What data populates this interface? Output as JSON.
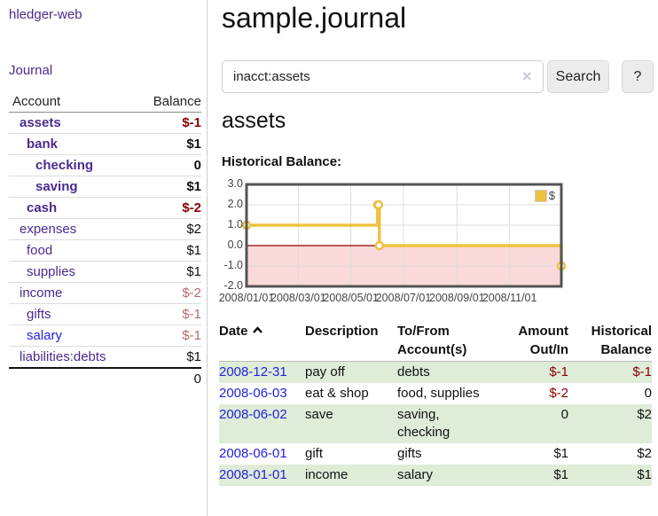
{
  "colors": {
    "link_purple": "#4a2b8f",
    "link_blue": "#2323dd",
    "negative_strong": "#8b0000",
    "negative_muted": "#b86a6a",
    "row_green": "#deecd8",
    "chart_line": "#edc240",
    "chart_negative_region": "#f9d9d9",
    "chart_zero_line": "#8b0000",
    "button_bg": "#ececec"
  },
  "sidebar": {
    "brand": "hledger-web",
    "nav_journal": "Journal",
    "header": {
      "account": "Account",
      "balance": "Balance"
    },
    "rows": [
      {
        "label": "assets",
        "balance": "$-1",
        "indent": 1,
        "bold": true,
        "link": "purple",
        "balance_color": "red-strong"
      },
      {
        "label": "bank",
        "balance": "$1",
        "indent": 2,
        "bold": true,
        "link": "purple",
        "balance_color": "black"
      },
      {
        "label": "checking",
        "balance": "0",
        "indent": 3,
        "bold": true,
        "link": "purple",
        "balance_color": "black"
      },
      {
        "label": "saving",
        "balance": "$1",
        "indent": 3,
        "bold": true,
        "link": "purple",
        "balance_color": "black"
      },
      {
        "label": "cash",
        "balance": "$-2",
        "indent": 2,
        "bold": true,
        "link": "purple",
        "balance_color": "red-strong"
      },
      {
        "label": "expenses",
        "balance": "$2",
        "indent": 1,
        "bold": false,
        "link": "purple",
        "balance_color": "black"
      },
      {
        "label": "food",
        "balance": "$1",
        "indent": 2,
        "bold": false,
        "link": "purple",
        "balance_color": "black"
      },
      {
        "label": "supplies",
        "balance": "$1",
        "indent": 2,
        "bold": false,
        "link": "purple",
        "balance_color": "black"
      },
      {
        "label": "income",
        "balance": "$-2",
        "indent": 1,
        "bold": false,
        "link": "purple",
        "balance_color": "red-muted"
      },
      {
        "label": "gifts",
        "balance": "$-1",
        "indent": 2,
        "bold": false,
        "link": "purple",
        "balance_color": "red-muted"
      },
      {
        "label": "salary",
        "balance": "$-1",
        "indent": 2,
        "bold": false,
        "link": "blue",
        "balance_color": "red-muted"
      },
      {
        "label": "liabilities:debts",
        "balance": "$1",
        "indent": 1,
        "bold": false,
        "link": "purple",
        "balance_color": "black"
      }
    ],
    "total": "0"
  },
  "main": {
    "title": "sample.journal",
    "search": {
      "value": "inacct:assets",
      "clear_icon": "×",
      "button": "Search",
      "help_button": "?"
    },
    "account_heading": "assets",
    "chart_label": "Historical Balance:"
  },
  "chart_data": {
    "type": "line",
    "title": "Historical Balance:",
    "step": true,
    "grid": true,
    "legend_position": "top-right",
    "x_range": [
      "2008-01-01",
      "2008-12-31"
    ],
    "y_range": [
      -2.0,
      3.0
    ],
    "y_ticks": [
      "3.0",
      "2.0",
      "1.0",
      "0.0",
      "-1.0",
      "-2.0"
    ],
    "x_ticks": [
      {
        "label": "2008/01/01",
        "date": "2008-01-01"
      },
      {
        "label": "2008/03/01",
        "date": "2008-03-01"
      },
      {
        "label": "2008/05/01",
        "date": "2008-05-01"
      },
      {
        "label": "2008/07/01",
        "date": "2008-07-01"
      },
      {
        "label": "2008/09/01",
        "date": "2008-09-01"
      },
      {
        "label": "2008/11/01",
        "date": "2008-11-01"
      }
    ],
    "series": [
      {
        "name": "$",
        "color": "#edc240",
        "points": [
          [
            "2008-01-01",
            1.0
          ],
          [
            "2008-06-01",
            2.0
          ],
          [
            "2008-06-02",
            2.0
          ],
          [
            "2008-06-03",
            0.0
          ],
          [
            "2008-12-31",
            -1.0
          ]
        ]
      }
    ],
    "negative_region_color": "#f9d9d9",
    "zero_line_color": "#8b0000"
  },
  "register": {
    "columns": [
      {
        "line1": "Date",
        "line2": "",
        "sort": "ascending"
      },
      {
        "line1": "Description",
        "line2": ""
      },
      {
        "line1": "To/From",
        "line2": "Account(s)"
      },
      {
        "line1": "Amount",
        "line2": "Out/In"
      },
      {
        "line1": "Historical",
        "line2": "Balance"
      }
    ],
    "rows": [
      {
        "date": "2008-12-31",
        "description": "pay off",
        "accounts": "debts",
        "amount": "$-1",
        "amount_negative": true,
        "balance": "$-1",
        "balance_negative": true
      },
      {
        "date": "2008-06-03",
        "description": "eat & shop",
        "accounts": "food, supplies",
        "amount": "$-2",
        "amount_negative": true,
        "balance": "0",
        "balance_negative": false
      },
      {
        "date": "2008-06-02",
        "description": "save",
        "accounts": "saving, checking",
        "amount": "0",
        "amount_negative": false,
        "balance": "$2",
        "balance_negative": false
      },
      {
        "date": "2008-06-01",
        "description": "gift",
        "accounts": "gifts",
        "amount": "$1",
        "amount_negative": false,
        "balance": "$2",
        "balance_negative": false
      },
      {
        "date": "2008-01-01",
        "description": "income",
        "accounts": "salary",
        "amount": "$1",
        "amount_negative": false,
        "balance": "$1",
        "balance_negative": false
      }
    ]
  }
}
